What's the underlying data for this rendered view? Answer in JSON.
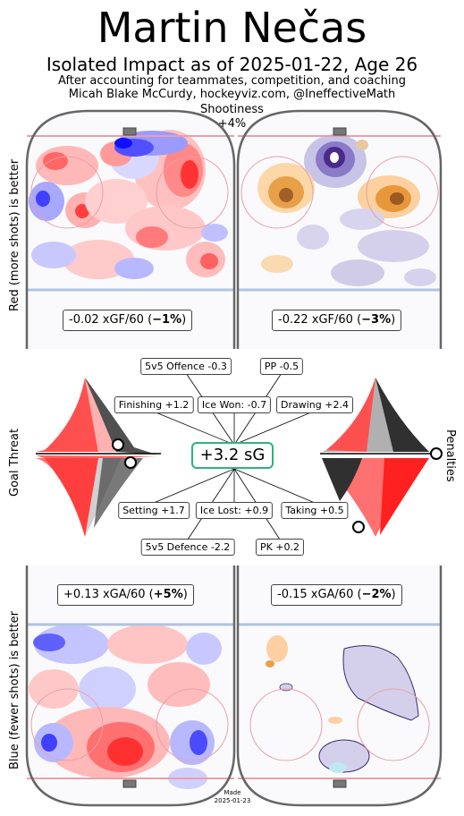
{
  "header": {
    "title": "Martin Nečas",
    "subtitle": "Isolated Impact as of 2025-01-22, Age 26",
    "note_line1": "After accounting for teammates, competition, and coaching",
    "note_line2": "Micah Blake McCurdy, hockeyviz.com, @IneffectiveMath",
    "shootiness_label": "Shootiness",
    "shootiness_value": "+4%"
  },
  "side_labels": {
    "offence": "Red (more shots) is better",
    "defence": "Blue (fewer shots) is better",
    "goal_threat": "Goal Threat",
    "penalties": "Penalties"
  },
  "footer": {
    "made_label": "Made",
    "made_date": "2025-01-23"
  },
  "colors": {
    "rink_outline": "#666666",
    "rink_fill": "#fafafc",
    "red_line": "#e8a0a8",
    "blue_line": "#b0c4e0",
    "positive_red": "#ff3030",
    "negative_blue": "#3030ff",
    "pp_orange": "#e0902a",
    "pk_purple": "#3a2a6a",
    "total_box_border": "#2eb37a"
  },
  "chart_data": [
    {
      "type": "heatmap",
      "panel": "5v5 offence",
      "label_value": "-0.02 xGF/60 (",
      "label_pct": "−1%",
      "label_close": ")",
      "xgf_per60": -0.02,
      "pct": -1
    },
    {
      "type": "heatmap",
      "panel": "PP offence",
      "label_value": "-0.22 xGF/60 (",
      "label_pct": "−3%",
      "label_close": ")",
      "xgf_per60": -0.22,
      "pct": -3
    },
    {
      "type": "heatmap",
      "panel": "5v5 defence",
      "label_value": "+0.13 xGA/60 (",
      "label_pct": "+5%",
      "label_close": ")",
      "xga_per60": 0.13,
      "pct": 5
    },
    {
      "type": "heatmap",
      "panel": "PK defence",
      "label_value": "-0.15 xGA/60 (",
      "label_pct": "−2%",
      "label_close": ")",
      "xga_per60": -0.15,
      "pct": -2
    },
    {
      "type": "bar",
      "panel": "impact summary",
      "total": {
        "label": "+3.2 sG",
        "value": 3.2
      },
      "components": [
        {
          "label": "5v5 Offence -0.3",
          "value": -0.3
        },
        {
          "label": "PP -0.5",
          "value": -0.5
        },
        {
          "label": "Finishing +1.2",
          "value": 1.2
        },
        {
          "label": "Ice Won: -0.7",
          "value": -0.7
        },
        {
          "label": "Drawing +2.4",
          "value": 2.4
        },
        {
          "label": "Setting +1.7",
          "value": 1.7
        },
        {
          "label": "Ice Lost: +0.9",
          "value": 0.9
        },
        {
          "label": "Taking +0.5",
          "value": 0.5
        },
        {
          "label": "5v5 Defence -2.2",
          "value": -2.2
        },
        {
          "label": "PK +0.2",
          "value": 0.2
        }
      ]
    }
  ]
}
